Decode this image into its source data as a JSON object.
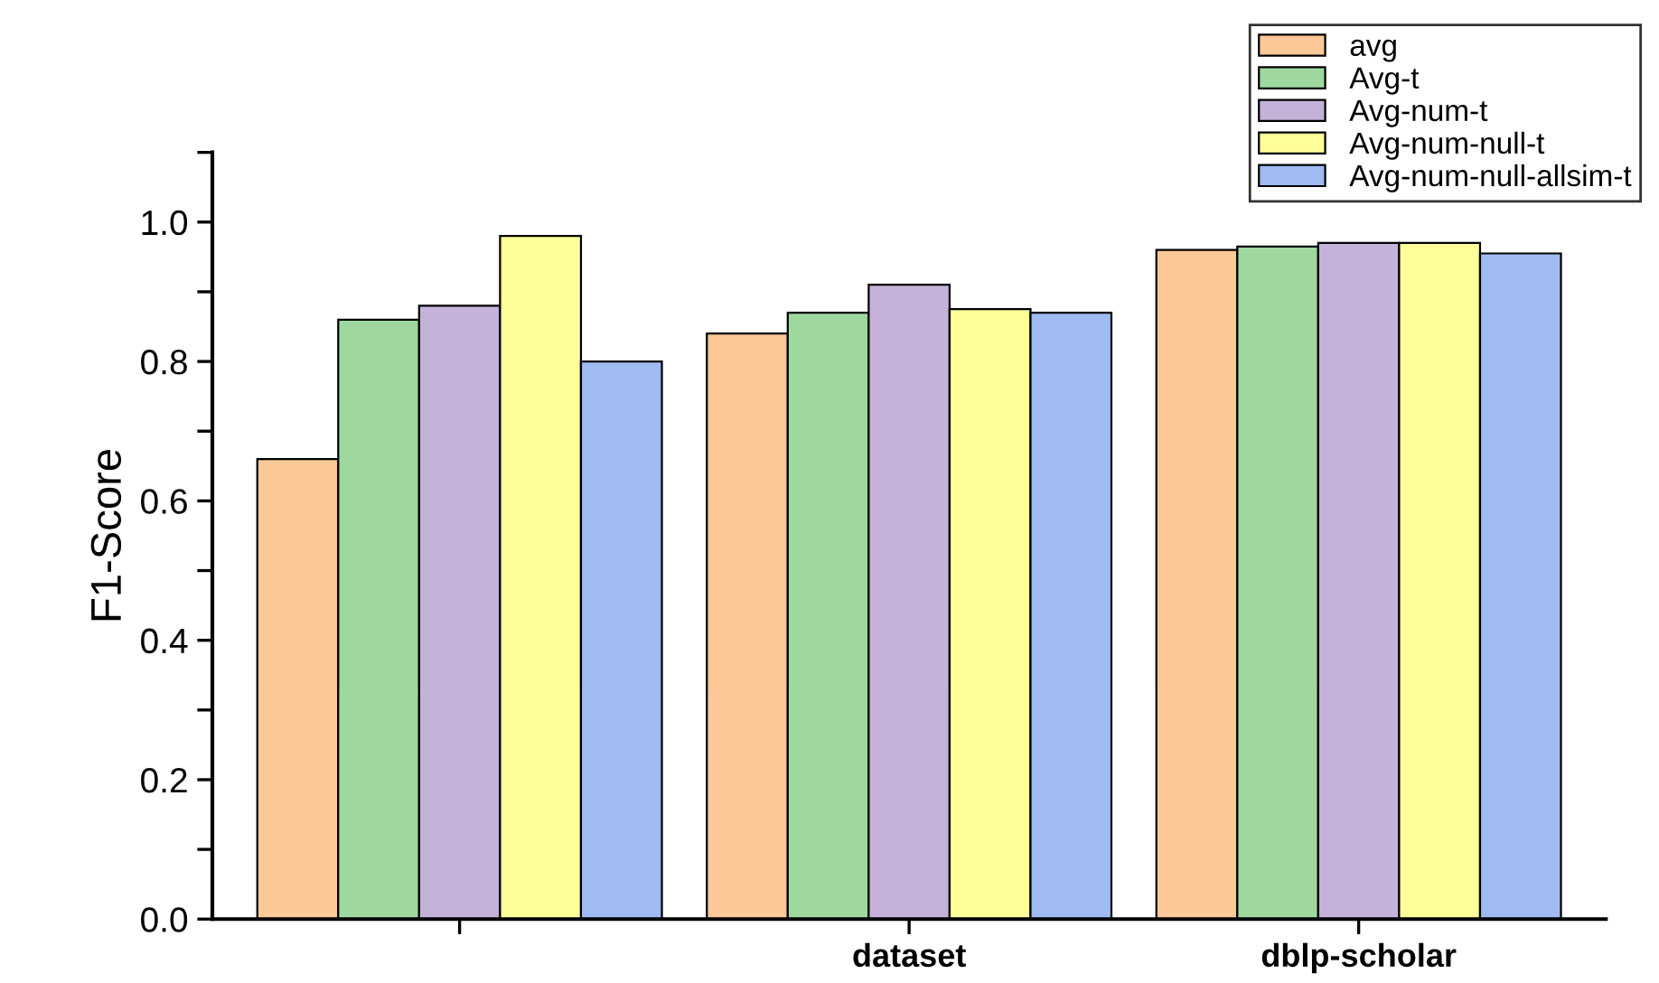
{
  "chart_data": {
    "type": "bar",
    "ylabel": "F1-Score",
    "categories": [
      null,
      "dataset",
      "dblp-scholar"
    ],
    "series": [
      {
        "name": "avg",
        "color": "#fdc898",
        "values": [
          0.66,
          0.84,
          0.96
        ]
      },
      {
        "name": "Avg-t",
        "color": "#9fd89f",
        "values": [
          0.86,
          0.87,
          0.965
        ]
      },
      {
        "name": "Avg-num-t",
        "color": "#c4b2d8",
        "values": [
          0.88,
          0.91,
          0.97
        ]
      },
      {
        "name": "Avg-num-null-t",
        "color": "#ffff99",
        "values": [
          0.98,
          0.875,
          0.97
        ]
      },
      {
        "name": "Avg-num-null-allsim-t",
        "color": "#9fbbf2",
        "values": [
          0.8,
          0.87,
          0.955
        ]
      }
    ],
    "ylim": [
      0,
      1.1
    ],
    "yticks": [
      {
        "value": 0,
        "label": "0.0"
      },
      {
        "value": 0.1,
        "label": null
      },
      {
        "value": 0.2,
        "label": "0.2"
      },
      {
        "value": 0.3,
        "label": null
      },
      {
        "value": 0.4,
        "label": "0.4"
      },
      {
        "value": 0.5,
        "label": null
      },
      {
        "value": 0.6,
        "label": "0.6"
      },
      {
        "value": 0.7,
        "label": null
      },
      {
        "value": 0.8,
        "label": "0.8"
      },
      {
        "value": 0.9,
        "label": null
      },
      {
        "value": 1.0,
        "label": "1.0"
      },
      {
        "value": 1.1,
        "label": null
      }
    ],
    "grid": false,
    "legend": "top right"
  }
}
